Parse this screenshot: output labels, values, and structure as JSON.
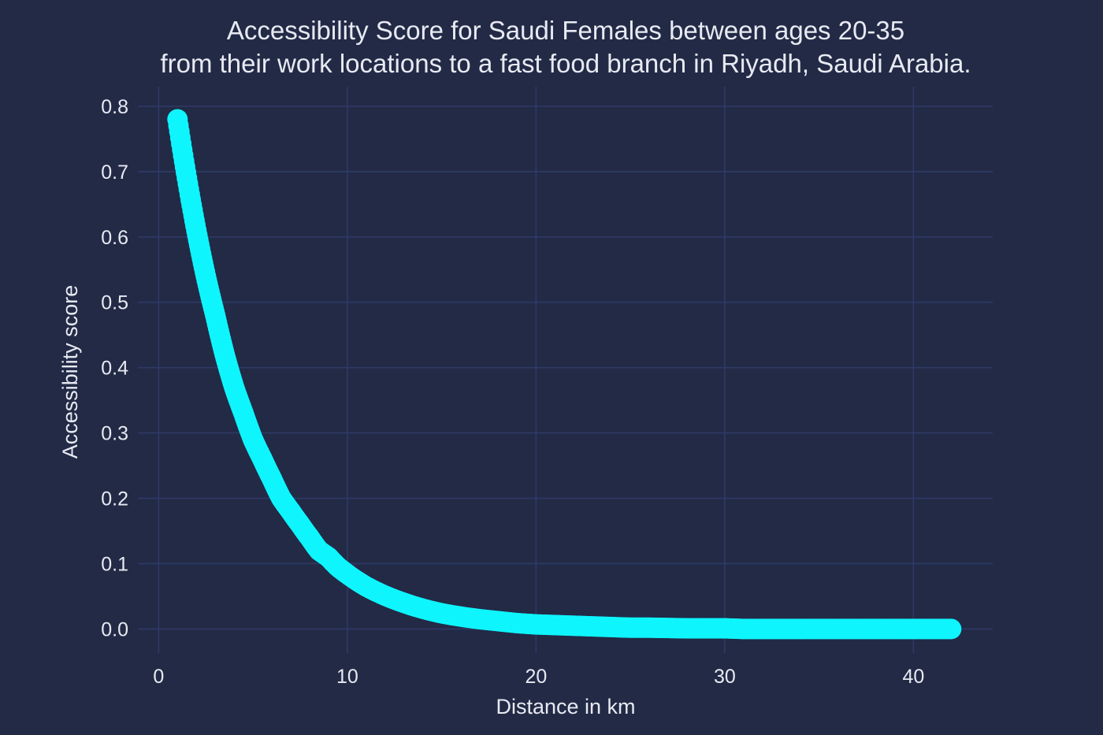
{
  "chart_data": {
    "type": "scatter",
    "title": "Accessibility Score for Saudi Females between ages 20-35",
    "subtitle": "from their work locations to a fast food branch in Riyadh, Saudi Arabia.",
    "xlabel": "Distance in km",
    "ylabel": "Accessibility score",
    "xlim": [
      -1.1,
      44.2
    ],
    "ylim": [
      -0.02,
      0.83
    ],
    "x_ticks": [
      0,
      10,
      20,
      30,
      40
    ],
    "y_ticks": [
      0.0,
      0.1,
      0.2,
      0.3,
      0.4,
      0.5,
      0.6,
      0.7,
      0.8
    ],
    "x_tick_labels": [
      "0",
      "10",
      "20",
      "30",
      "40"
    ],
    "y_tick_labels": [
      "0.0",
      "0.1",
      "0.2",
      "0.3",
      "0.4",
      "0.5",
      "0.6",
      "0.7",
      "0.8"
    ],
    "grid": true,
    "legend": "none",
    "marker_color": "#0ff5fd",
    "background_color": "#222a46",
    "grid_color": "#2f3a66",
    "series": [
      {
        "x": [
          1.0,
          1.5,
          2.0,
          2.5,
          3.0,
          3.5,
          4.0,
          4.5,
          5.0,
          5.5,
          6.0,
          6.5,
          7.0,
          7.5,
          8.0,
          8.5,
          9.0,
          9.5,
          10.0,
          11.0,
          12.0,
          13.0,
          14.0,
          15.0,
          16.0,
          17.0,
          18.0,
          19.0,
          20.0,
          21.0,
          22.0,
          23.0,
          24.0,
          25.0,
          26.0,
          27.0,
          28.0,
          29.0,
          30.0,
          31.0,
          32.0,
          33.0,
          34.0,
          35.0,
          36.0,
          37.0,
          38.0,
          39.0,
          40.0,
          41.0,
          42.0
        ],
        "y": [
          0.78,
          0.69,
          0.61,
          0.54,
          0.48,
          0.42,
          0.37,
          0.33,
          0.29,
          0.26,
          0.23,
          0.2,
          0.18,
          0.16,
          0.14,
          0.12,
          0.11,
          0.095,
          0.084,
          0.065,
          0.051,
          0.04,
          0.031,
          0.024,
          0.019,
          0.015,
          0.012,
          0.009,
          0.007,
          0.006,
          0.005,
          0.004,
          0.003,
          0.002,
          0.002,
          0.0015,
          0.001,
          0.001,
          0.001,
          0.0,
          0.0,
          0.0,
          0.0,
          0.0,
          0.0,
          0.0,
          0.0,
          0.0,
          0.0,
          0.0,
          0.0
        ]
      }
    ]
  }
}
